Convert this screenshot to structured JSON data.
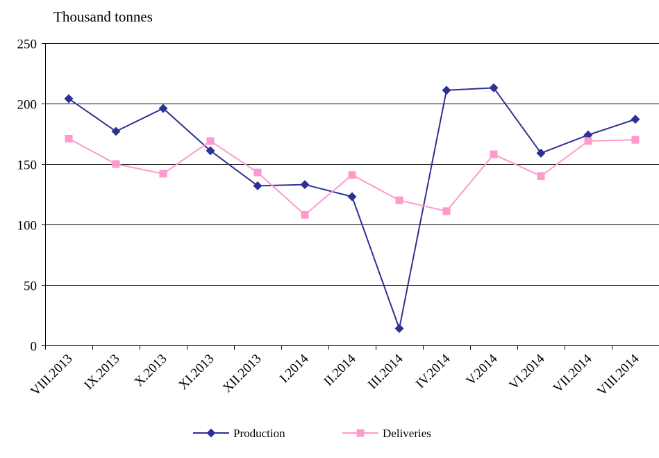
{
  "chart_data": {
    "type": "line",
    "unit_label": "Thousand tonnes",
    "categories": [
      "VIII.2013",
      "IX.2013",
      "X.2013",
      "XI.2013",
      "XII.2013",
      "I.2014",
      "II.2014",
      "III.2014",
      "IV.2014",
      "V.2014",
      "VI.2014",
      "VII.2014",
      "VIII.2014"
    ],
    "series": [
      {
        "name": "Production",
        "color": "#2e3192",
        "marker": "diamond",
        "values": [
          204,
          177,
          196,
          161,
          132,
          133,
          123,
          14,
          211,
          213,
          159,
          174,
          187
        ]
      },
      {
        "name": "Deliveries",
        "color": "#ff99cc",
        "marker": "square",
        "values": [
          171,
          150,
          142,
          169,
          143,
          108,
          141,
          120,
          111,
          158,
          140,
          169,
          170
        ]
      }
    ],
    "ylim": [
      0,
      250
    ],
    "yticks": [
      0,
      50,
      100,
      150,
      200,
      250
    ],
    "grid": true,
    "legend_position": "bottom"
  }
}
